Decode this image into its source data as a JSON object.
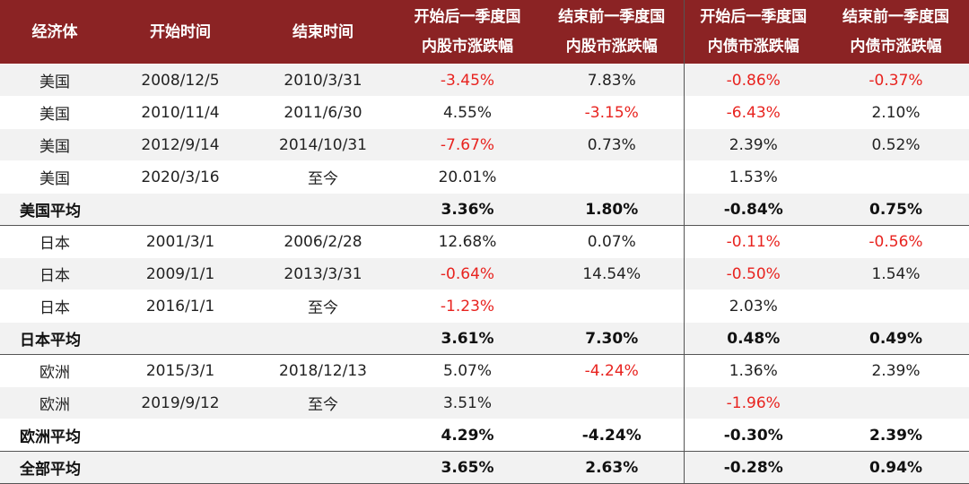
{
  "table": {
    "headers": [
      "经济体",
      "开始时间",
      "结束时间",
      "开始后一季度国",
      "内股市涨跌幅",
      "结束前一季度国",
      "内股市涨跌幅",
      "开始后一季度国",
      "内债市涨跌幅",
      "结束前一季度国",
      "内债市涨跌幅"
    ],
    "rows": [
      {
        "country": "美国",
        "start": "2008/12/5",
        "end": "2010/3/31",
        "eq_after": "-3.45%",
        "eq_before": "7.83%",
        "bd_after": "-0.86%",
        "bd_before": "-0.37%"
      },
      {
        "country": "美国",
        "start": "2010/11/4",
        "end": "2011/6/30",
        "eq_after": "4.55%",
        "eq_before": "-3.15%",
        "bd_after": "-6.43%",
        "bd_before": "2.10%"
      },
      {
        "country": "美国",
        "start": "2012/9/14",
        "end": "2014/10/31",
        "eq_after": "-7.67%",
        "eq_before": "0.73%",
        "bd_after": "2.39%",
        "bd_before": "0.52%"
      },
      {
        "country": "美国",
        "start": "2020/3/16",
        "end": "至今",
        "eq_after": "20.01%",
        "eq_before": "",
        "bd_after": "1.53%",
        "bd_before": ""
      },
      {
        "country": "美国平均",
        "start": "",
        "end": "",
        "eq_after": "3.36%",
        "eq_before": "1.80%",
        "bd_after": "-0.84%",
        "bd_before": "0.75%"
      },
      {
        "country": "日本",
        "start": "2001/3/1",
        "end": "2006/2/28",
        "eq_after": "12.68%",
        "eq_before": "0.07%",
        "bd_after": "-0.11%",
        "bd_before": "-0.56%"
      },
      {
        "country": "日本",
        "start": "2009/1/1",
        "end": "2013/3/31",
        "eq_after": "-0.64%",
        "eq_before": "14.54%",
        "bd_after": "-0.50%",
        "bd_before": "1.54%"
      },
      {
        "country": "日本",
        "start": "2016/1/1",
        "end": "至今",
        "eq_after": "-1.23%",
        "eq_before": "",
        "bd_after": "2.03%",
        "bd_before": ""
      },
      {
        "country": "日本平均",
        "start": "",
        "end": "",
        "eq_after": "3.61%",
        "eq_before": "7.30%",
        "bd_after": "0.48%",
        "bd_before": "0.49%"
      },
      {
        "country": "欧洲",
        "start": "2015/3/1",
        "end": "2018/12/13",
        "eq_after": "5.07%",
        "eq_before": "-4.24%",
        "bd_after": "1.36%",
        "bd_before": "2.39%"
      },
      {
        "country": "欧洲",
        "start": "2019/9/12",
        "end": "至今",
        "eq_after": "3.51%",
        "eq_before": "",
        "bd_after": "-1.96%",
        "bd_before": ""
      },
      {
        "country": "欧洲平均",
        "start": "",
        "end": "",
        "eq_after": "4.29%",
        "eq_before": "-4.24%",
        "bd_after": "-0.30%",
        "bd_before": "2.39%"
      },
      {
        "country": "全部平均",
        "start": "",
        "end": "",
        "eq_after": "3.65%",
        "eq_before": "2.63%",
        "bd_after": "-0.28%",
        "bd_before": "0.94%"
      }
    ]
  },
  "colors": {
    "header_bg": "#8b2324",
    "header_text": "#ffffff",
    "negative": "#e8231f",
    "stripe": "#f2f2f2"
  }
}
